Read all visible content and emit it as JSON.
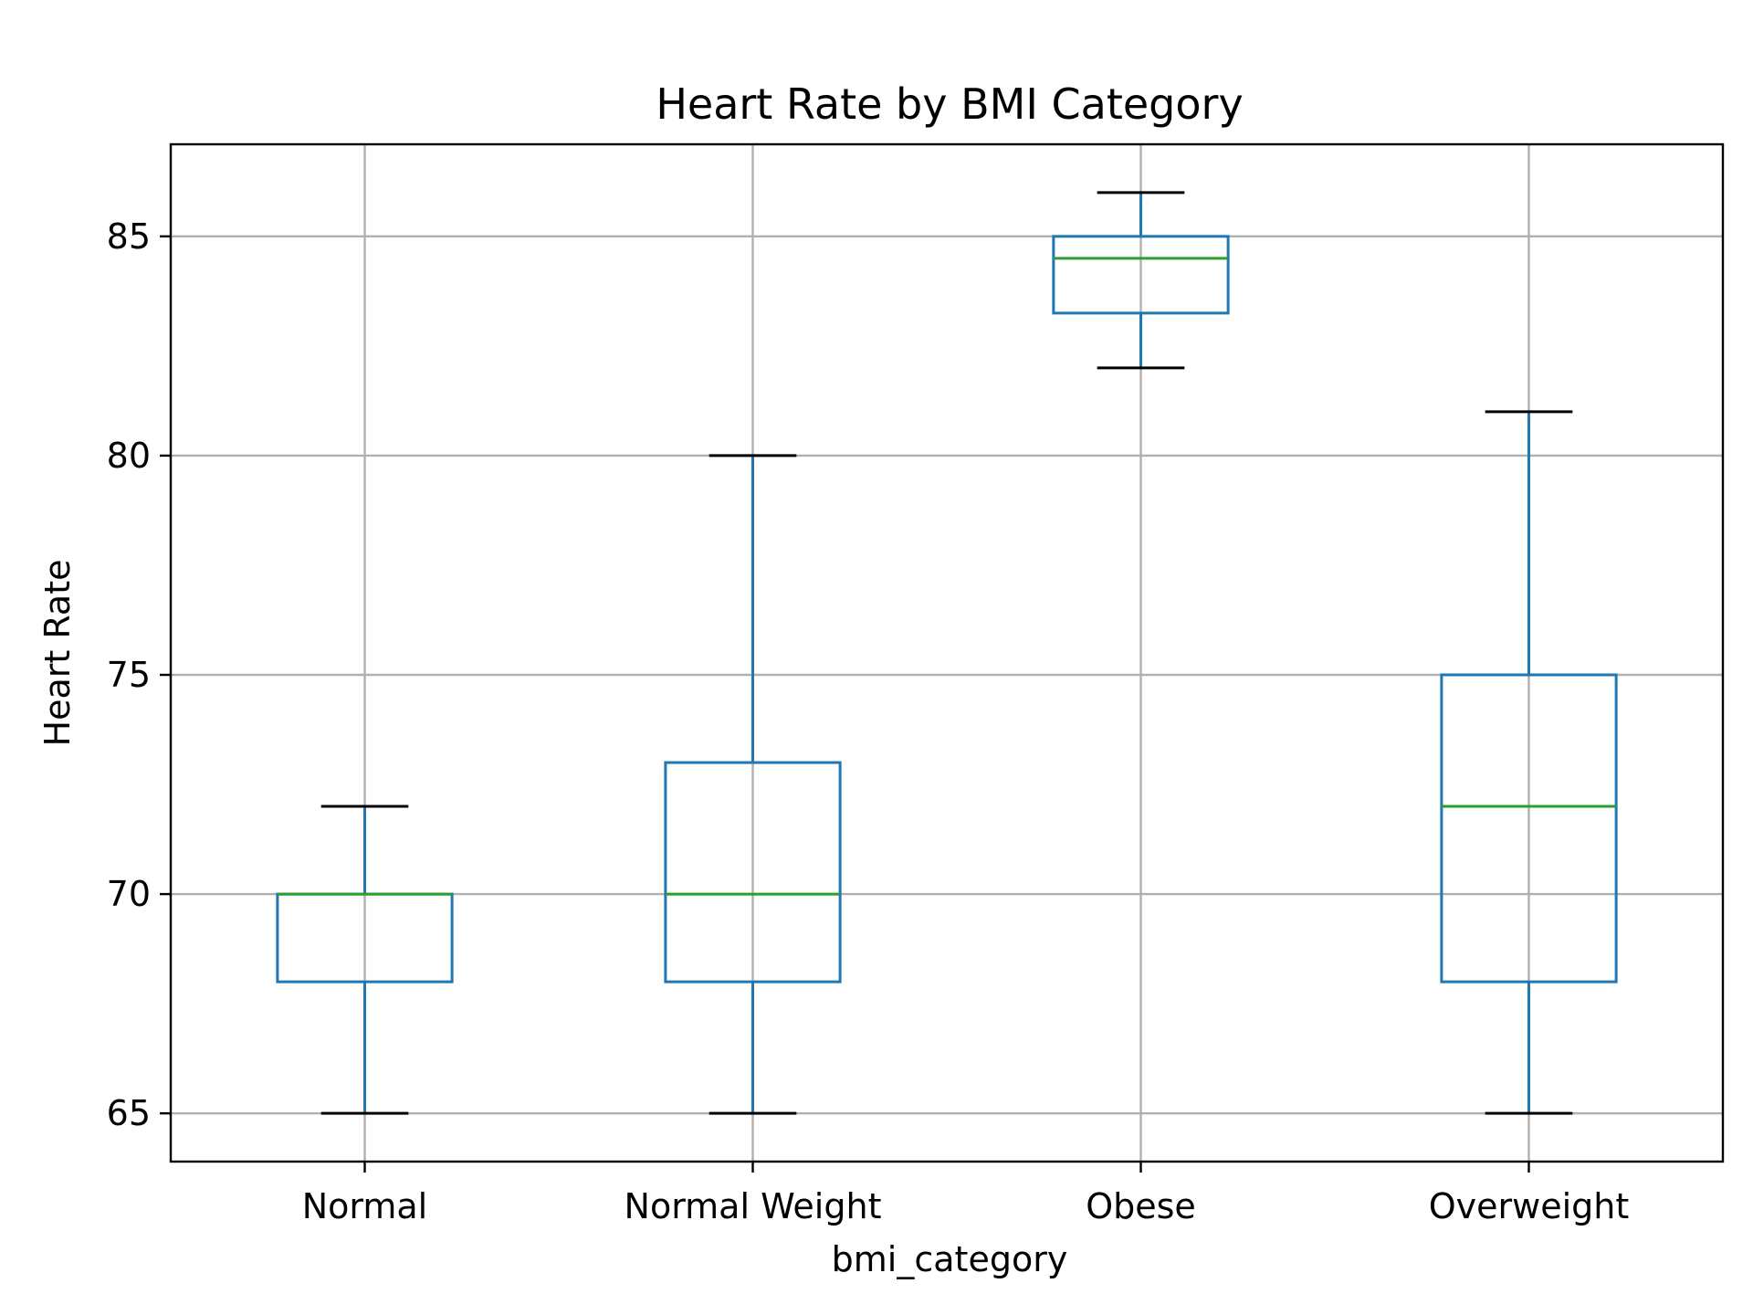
{
  "chart_data": {
    "type": "box",
    "title": "Heart Rate by BMI Category",
    "xlabel": "bmi_category",
    "ylabel": "Heart Rate",
    "ylim": [
      63.9,
      87.1
    ],
    "yticks": [
      65,
      70,
      75,
      80,
      85
    ],
    "grid": true,
    "colors": {
      "box": "#1f77b4",
      "median": "#2ca02c",
      "cap": "#000000",
      "grid": "#b0b0b0"
    },
    "categories": [
      "Normal",
      "Normal Weight",
      "Obese",
      "Overweight"
    ],
    "boxes": [
      {
        "category": "Normal",
        "whisker_low": 65,
        "q1": 68,
        "median": 70,
        "q3": 70,
        "whisker_high": 72
      },
      {
        "category": "Normal Weight",
        "whisker_low": 65,
        "q1": 68,
        "median": 70,
        "q3": 73,
        "whisker_high": 80
      },
      {
        "category": "Obese",
        "whisker_low": 82,
        "q1": 83.25,
        "median": 84.5,
        "q3": 85,
        "whisker_high": 86
      },
      {
        "category": "Overweight",
        "whisker_low": 65,
        "q1": 68,
        "median": 72,
        "q3": 75,
        "whisker_high": 81
      }
    ]
  }
}
